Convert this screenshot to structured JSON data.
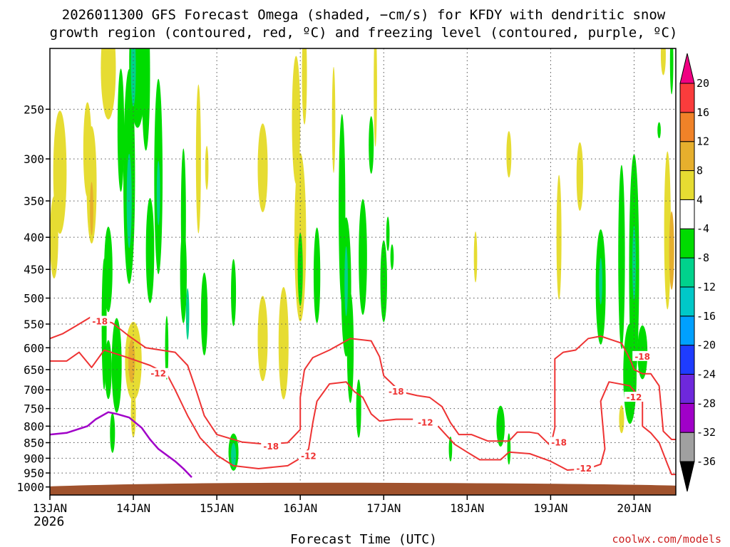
{
  "chart_data": {
    "type": "heatmap",
    "title_line1": "2026011300 GFS Forecast Omega (shaded, −cm/s) for KFDY with dendritic snow",
    "title_line2": "growth region (contoured, red, ºC) and freezing level (contoured, purple, ºC)",
    "xlabel": "Forecast Time (UTC)",
    "x_start_year": "2026",
    "credit": "coolwx.com/models",
    "x_range": [
      0,
      7.5
    ],
    "x_ticks": [
      {
        "t": 0,
        "label": "13JAN"
      },
      {
        "t": 1,
        "label": "14JAN"
      },
      {
        "t": 2,
        "label": "15JAN"
      },
      {
        "t": 3,
        "label": "16JAN"
      },
      {
        "t": 4,
        "label": "17JAN"
      },
      {
        "t": 5,
        "label": "18JAN"
      },
      {
        "t": 6,
        "label": "19JAN"
      },
      {
        "t": 7,
        "label": "20JAN"
      }
    ],
    "y_levels_hpa": [
      250,
      300,
      350,
      400,
      450,
      500,
      550,
      600,
      650,
      700,
      750,
      800,
      850,
      900,
      950,
      1000
    ],
    "y_range_hpa": [
      200,
      1030
    ],
    "colorbar": {
      "levels": [
        -36,
        -32,
        -28,
        -24,
        -20,
        -16,
        -12,
        -8,
        -4,
        4,
        8,
        12,
        16,
        20
      ],
      "colors": [
        "#000000",
        "#a0a0a0",
        "#a000c8",
        "#6e28dc",
        "#1e3cff",
        "#00a0ff",
        "#00c8c8",
        "#00d28c",
        "#00dc00",
        "#ffffff",
        "#e6dc32",
        "#e6af2d",
        "#f08228",
        "#fa3c3c",
        "#f00082"
      ]
    },
    "shading_colors": {
      "green": "#00dc00",
      "teal": "#00d28c",
      "cyan": "#00c8c8",
      "yellow": "#e6dc32",
      "orange": "#e6af2d"
    },
    "contour_color": "#ee3333",
    "freezing_color": "#a000c8",
    "ground_color": "#a0522d",
    "contour_labels": [
      {
        "t": 0.6,
        "p": 545,
        "label": "-18"
      },
      {
        "t": 1.3,
        "p": 660,
        "label": "-12"
      },
      {
        "t": 2.65,
        "p": 862,
        "label": "-18"
      },
      {
        "t": 3.1,
        "p": 893,
        "label": "-12"
      },
      {
        "t": 4.15,
        "p": 705,
        "label": "-18"
      },
      {
        "t": 4.5,
        "p": 790,
        "label": "-12"
      },
      {
        "t": 6.1,
        "p": 850,
        "label": "-18"
      },
      {
        "t": 6.4,
        "p": 935,
        "label": "-12"
      },
      {
        "t": 7.1,
        "p": 620,
        "label": "-18"
      },
      {
        "t": 7.0,
        "p": 720,
        "label": "-12"
      }
    ],
    "contours": [
      {
        "name": "-18-a",
        "pts": [
          [
            0,
            580
          ],
          [
            0.15,
            570
          ],
          [
            0.3,
            555
          ],
          [
            0.5,
            535
          ],
          [
            0.75,
            548
          ],
          [
            0.95,
            575
          ],
          [
            1.15,
            600
          ],
          [
            1.5,
            610
          ],
          [
            1.65,
            640
          ],
          [
            1.75,
            700
          ],
          [
            1.85,
            770
          ],
          [
            2.0,
            825
          ],
          [
            2.3,
            848
          ],
          [
            2.6,
            855
          ],
          [
            2.85,
            850
          ],
          [
            3.0,
            810
          ],
          [
            3.0,
            720
          ],
          [
            3.05,
            650
          ],
          [
            3.15,
            622
          ],
          [
            3.35,
            605
          ],
          [
            3.6,
            580
          ],
          [
            3.85,
            585
          ],
          [
            3.95,
            620
          ],
          [
            4.0,
            665
          ],
          [
            4.2,
            705
          ],
          [
            4.4,
            715
          ],
          [
            4.55,
            720
          ],
          [
            4.7,
            745
          ],
          [
            4.8,
            790
          ],
          [
            4.9,
            825
          ],
          [
            5.05,
            825
          ],
          [
            5.25,
            845
          ],
          [
            5.5,
            845
          ],
          [
            5.6,
            818
          ],
          [
            5.75,
            818
          ],
          [
            5.85,
            822
          ],
          [
            6.0,
            860
          ],
          [
            6.05,
            805
          ],
          [
            6.05,
            625
          ],
          [
            6.15,
            610
          ],
          [
            6.3,
            605
          ],
          [
            6.45,
            580
          ],
          [
            6.6,
            575
          ],
          [
            6.85,
            590
          ],
          [
            6.95,
            625
          ],
          [
            7.0,
            650
          ],
          [
            7.1,
            660
          ],
          [
            7.2,
            660
          ],
          [
            7.3,
            690
          ],
          [
            7.35,
            815
          ],
          [
            7.45,
            840
          ],
          [
            7.5,
            840
          ]
        ]
      },
      {
        "name": "-12-a",
        "pts": [
          [
            0,
            630
          ],
          [
            0.2,
            630
          ],
          [
            0.35,
            610
          ],
          [
            0.5,
            645
          ],
          [
            0.65,
            605
          ],
          [
            0.9,
            620
          ],
          [
            1.2,
            640
          ],
          [
            1.4,
            660
          ],
          [
            1.5,
            700
          ],
          [
            1.65,
            770
          ],
          [
            1.8,
            835
          ],
          [
            2.0,
            890
          ],
          [
            2.2,
            925
          ],
          [
            2.5,
            935
          ],
          [
            2.85,
            925
          ],
          [
            3.0,
            900
          ],
          [
            3.1,
            870
          ],
          [
            3.15,
            790
          ],
          [
            3.2,
            730
          ],
          [
            3.35,
            685
          ],
          [
            3.55,
            680
          ],
          [
            3.65,
            705
          ],
          [
            3.75,
            720
          ],
          [
            3.85,
            765
          ],
          [
            3.95,
            785
          ],
          [
            4.15,
            780
          ],
          [
            4.35,
            780
          ]
        ]
      },
      {
        "name": "-12-b",
        "pts": [
          [
            4.65,
            800
          ],
          [
            4.85,
            855
          ],
          [
            5.0,
            880
          ],
          [
            5.15,
            905
          ],
          [
            5.4,
            905
          ],
          [
            5.5,
            880
          ],
          [
            5.75,
            885
          ],
          [
            6.0,
            910
          ],
          [
            6.2,
            940
          ],
          [
            6.45,
            935
          ],
          [
            6.6,
            920
          ],
          [
            6.65,
            870
          ],
          [
            6.6,
            730
          ],
          [
            6.7,
            680
          ],
          [
            6.95,
            690
          ],
          [
            7.1,
            730
          ],
          [
            7.1,
            800
          ],
          [
            7.2,
            820
          ],
          [
            7.3,
            850
          ],
          [
            7.4,
            920
          ],
          [
            7.45,
            955
          ],
          [
            7.5,
            955
          ]
        ]
      }
    ],
    "freezing_line": [
      [
        0,
        825
      ],
      [
        0.2,
        820
      ],
      [
        0.45,
        800
      ],
      [
        0.55,
        780
      ],
      [
        0.7,
        760
      ],
      [
        0.8,
        765
      ],
      [
        0.95,
        775
      ],
      [
        1.1,
        805
      ],
      [
        1.2,
        840
      ],
      [
        1.3,
        870
      ],
      [
        1.5,
        910
      ],
      [
        1.6,
        935
      ],
      [
        1.7,
        965
      ]
    ],
    "omega_blobs": [
      {
        "t": 0.12,
        "p": 315,
        "rt": 0.08,
        "rp": 70,
        "c": "yellow"
      },
      {
        "t": 0.05,
        "p": 400,
        "rt": 0.05,
        "rp": 60,
        "c": "yellow"
      },
      {
        "t": 0.45,
        "p": 290,
        "rt": 0.05,
        "rp": 50,
        "c": "yellow"
      },
      {
        "t": 0.5,
        "p": 330,
        "rt": 0.06,
        "rp": 70,
        "c": "yellow"
      },
      {
        "t": 0.5,
        "p": 360,
        "rt": 0.02,
        "rp": 35,
        "c": "orange"
      },
      {
        "t": 0.7,
        "p": 215,
        "rt": 0.09,
        "rp": 40,
        "c": "yellow"
      },
      {
        "t": 0.85,
        "p": 270,
        "rt": 0.04,
        "rp": 60,
        "c": "green"
      },
      {
        "t": 0.7,
        "p": 450,
        "rt": 0.05,
        "rp": 70,
        "c": "green"
      },
      {
        "t": 0.65,
        "p": 550,
        "rt": 0.03,
        "rp": 130,
        "c": "green"
      },
      {
        "t": 0.7,
        "p": 650,
        "rt": 0.04,
        "rp": 70,
        "c": "green"
      },
      {
        "t": 0.75,
        "p": 820,
        "rt": 0.03,
        "rp": 60,
        "c": "green"
      },
      {
        "t": 0.95,
        "p": 320,
        "rt": 0.07,
        "rp": 120,
        "c": "green"
      },
      {
        "t": 0.95,
        "p": 350,
        "rt": 0.03,
        "rp": 60,
        "c": "teal"
      },
      {
        "t": 0.8,
        "p": 640,
        "rt": 0.06,
        "rp": 110,
        "c": "green"
      },
      {
        "t": 1.0,
        "p": 630,
        "rt": 0.1,
        "rp": 90,
        "c": "yellow"
      },
      {
        "t": 0.98,
        "p": 630,
        "rt": 0.04,
        "rp": 50,
        "c": "orange"
      },
      {
        "t": 1.0,
        "p": 760,
        "rt": 0.03,
        "rp": 70,
        "c": "yellow"
      },
      {
        "t": 1.05,
        "p": 210,
        "rt": 0.1,
        "rp": 50,
        "c": "green"
      },
      {
        "t": 1.0,
        "p": 215,
        "rt": 0.03,
        "rp": 30,
        "c": "teal"
      },
      {
        "t": 1.15,
        "p": 220,
        "rt": 0.05,
        "rp": 60,
        "c": "green"
      },
      {
        "t": 1.3,
        "p": 320,
        "rt": 0.05,
        "rp": 110,
        "c": "green"
      },
      {
        "t": 1.3,
        "p": 340,
        "rt": 0.02,
        "rp": 40,
        "c": "teal"
      },
      {
        "t": 1.2,
        "p": 420,
        "rt": 0.05,
        "rp": 80,
        "c": "green"
      },
      {
        "t": 1.4,
        "p": 600,
        "rt": 0.02,
        "rp": 70,
        "c": "green"
      },
      {
        "t": 1.6,
        "p": 370,
        "rt": 0.03,
        "rp": 90,
        "c": "green"
      },
      {
        "t": 1.6,
        "p": 460,
        "rt": 0.04,
        "rp": 80,
        "c": "green"
      },
      {
        "t": 1.65,
        "p": 530,
        "rt": 0.02,
        "rp": 50,
        "c": "teal"
      },
      {
        "t": 1.78,
        "p": 300,
        "rt": 0.03,
        "rp": 80,
        "c": "yellow"
      },
      {
        "t": 1.85,
        "p": 530,
        "rt": 0.04,
        "rp": 80,
        "c": "green"
      },
      {
        "t": 1.88,
        "p": 310,
        "rt": 0.02,
        "rp": 25,
        "c": "yellow"
      },
      {
        "t": 2.2,
        "p": 490,
        "rt": 0.03,
        "rp": 60,
        "c": "green"
      },
      {
        "t": 2.55,
        "p": 310,
        "rt": 0.06,
        "rp": 50,
        "c": "yellow"
      },
      {
        "t": 2.55,
        "p": 580,
        "rt": 0.06,
        "rp": 90,
        "c": "yellow"
      },
      {
        "t": 2.2,
        "p": 880,
        "rt": 0.06,
        "rp": 60,
        "c": "green"
      },
      {
        "t": 2.2,
        "p": 890,
        "rt": 0.03,
        "rp": 40,
        "c": "teal"
      },
      {
        "t": 2.8,
        "p": 590,
        "rt": 0.06,
        "rp": 120,
        "c": "yellow"
      },
      {
        "t": 2.95,
        "p": 260,
        "rt": 0.05,
        "rp": 60,
        "c": "yellow"
      },
      {
        "t": 3.0,
        "p": 400,
        "rt": 0.07,
        "rp": 120,
        "c": "yellow"
      },
      {
        "t": 3.0,
        "p": 450,
        "rt": 0.03,
        "rp": 60,
        "c": "green"
      },
      {
        "t": 3.05,
        "p": 220,
        "rt": 0.03,
        "rp": 40,
        "c": "yellow"
      },
      {
        "t": 3.4,
        "p": 260,
        "rt": 0.02,
        "rp": 50,
        "c": "yellow"
      },
      {
        "t": 3.2,
        "p": 460,
        "rt": 0.04,
        "rp": 80,
        "c": "green"
      },
      {
        "t": 3.5,
        "p": 360,
        "rt": 0.04,
        "rp": 120,
        "c": "green"
      },
      {
        "t": 3.55,
        "p": 480,
        "rt": 0.06,
        "rp": 120,
        "c": "green"
      },
      {
        "t": 3.55,
        "p": 470,
        "rt": 0.02,
        "rp": 60,
        "c": "teal"
      },
      {
        "t": 3.6,
        "p": 600,
        "rt": 0.04,
        "rp": 120,
        "c": "green"
      },
      {
        "t": 3.75,
        "p": 430,
        "rt": 0.05,
        "rp": 90,
        "c": "green"
      },
      {
        "t": 3.7,
        "p": 750,
        "rt": 0.03,
        "rp": 80,
        "c": "green"
      },
      {
        "t": 3.85,
        "p": 285,
        "rt": 0.03,
        "rp": 30,
        "c": "green"
      },
      {
        "t": 3.9,
        "p": 230,
        "rt": 0.02,
        "rp": 50,
        "c": "yellow"
      },
      {
        "t": 4.0,
        "p": 470,
        "rt": 0.04,
        "rp": 70,
        "c": "green"
      },
      {
        "t": 4.05,
        "p": 395,
        "rt": 0.02,
        "rp": 25,
        "c": "green"
      },
      {
        "t": 4.1,
        "p": 430,
        "rt": 0.02,
        "rp": 20,
        "c": "green"
      },
      {
        "t": 4.8,
        "p": 870,
        "rt": 0.02,
        "rp": 40,
        "c": "green"
      },
      {
        "t": 5.1,
        "p": 430,
        "rt": 0.02,
        "rp": 40,
        "c": "yellow"
      },
      {
        "t": 5.4,
        "p": 800,
        "rt": 0.05,
        "rp": 60,
        "c": "green"
      },
      {
        "t": 5.5,
        "p": 295,
        "rt": 0.03,
        "rp": 25,
        "c": "yellow"
      },
      {
        "t": 5.5,
        "p": 870,
        "rt": 0.02,
        "rp": 50,
        "c": "green"
      },
      {
        "t": 6.1,
        "p": 400,
        "rt": 0.03,
        "rp": 90,
        "c": "yellow"
      },
      {
        "t": 6.35,
        "p": 320,
        "rt": 0.04,
        "rp": 40,
        "c": "yellow"
      },
      {
        "t": 6.6,
        "p": 480,
        "rt": 0.06,
        "rp": 100,
        "c": "green"
      },
      {
        "t": 6.6,
        "p": 470,
        "rt": 0.02,
        "rp": 40,
        "c": "teal"
      },
      {
        "t": 6.85,
        "p": 430,
        "rt": 0.04,
        "rp": 140,
        "c": "green"
      },
      {
        "t": 6.95,
        "p": 660,
        "rt": 0.08,
        "rp": 120,
        "c": "green"
      },
      {
        "t": 6.85,
        "p": 780,
        "rt": 0.03,
        "rp": 40,
        "c": "yellow"
      },
      {
        "t": 7.0,
        "p": 450,
        "rt": 0.06,
        "rp": 180,
        "c": "green"
      },
      {
        "t": 7.0,
        "p": 440,
        "rt": 0.02,
        "rp": 60,
        "c": "teal"
      },
      {
        "t": 7.1,
        "p": 610,
        "rt": 0.06,
        "rp": 60,
        "c": "green"
      },
      {
        "t": 7.4,
        "p": 390,
        "rt": 0.04,
        "rp": 110,
        "c": "yellow"
      },
      {
        "t": 7.45,
        "p": 420,
        "rt": 0.03,
        "rp": 60,
        "c": "orange"
      },
      {
        "t": 7.45,
        "p": 210,
        "rt": 0.02,
        "rp": 25,
        "c": "green"
      },
      {
        "t": 7.35,
        "p": 205,
        "rt": 0.03,
        "rp": 15,
        "c": "yellow"
      },
      {
        "t": 7.3,
        "p": 270,
        "rt": 0.02,
        "rp": 8,
        "c": "green"
      }
    ]
  }
}
